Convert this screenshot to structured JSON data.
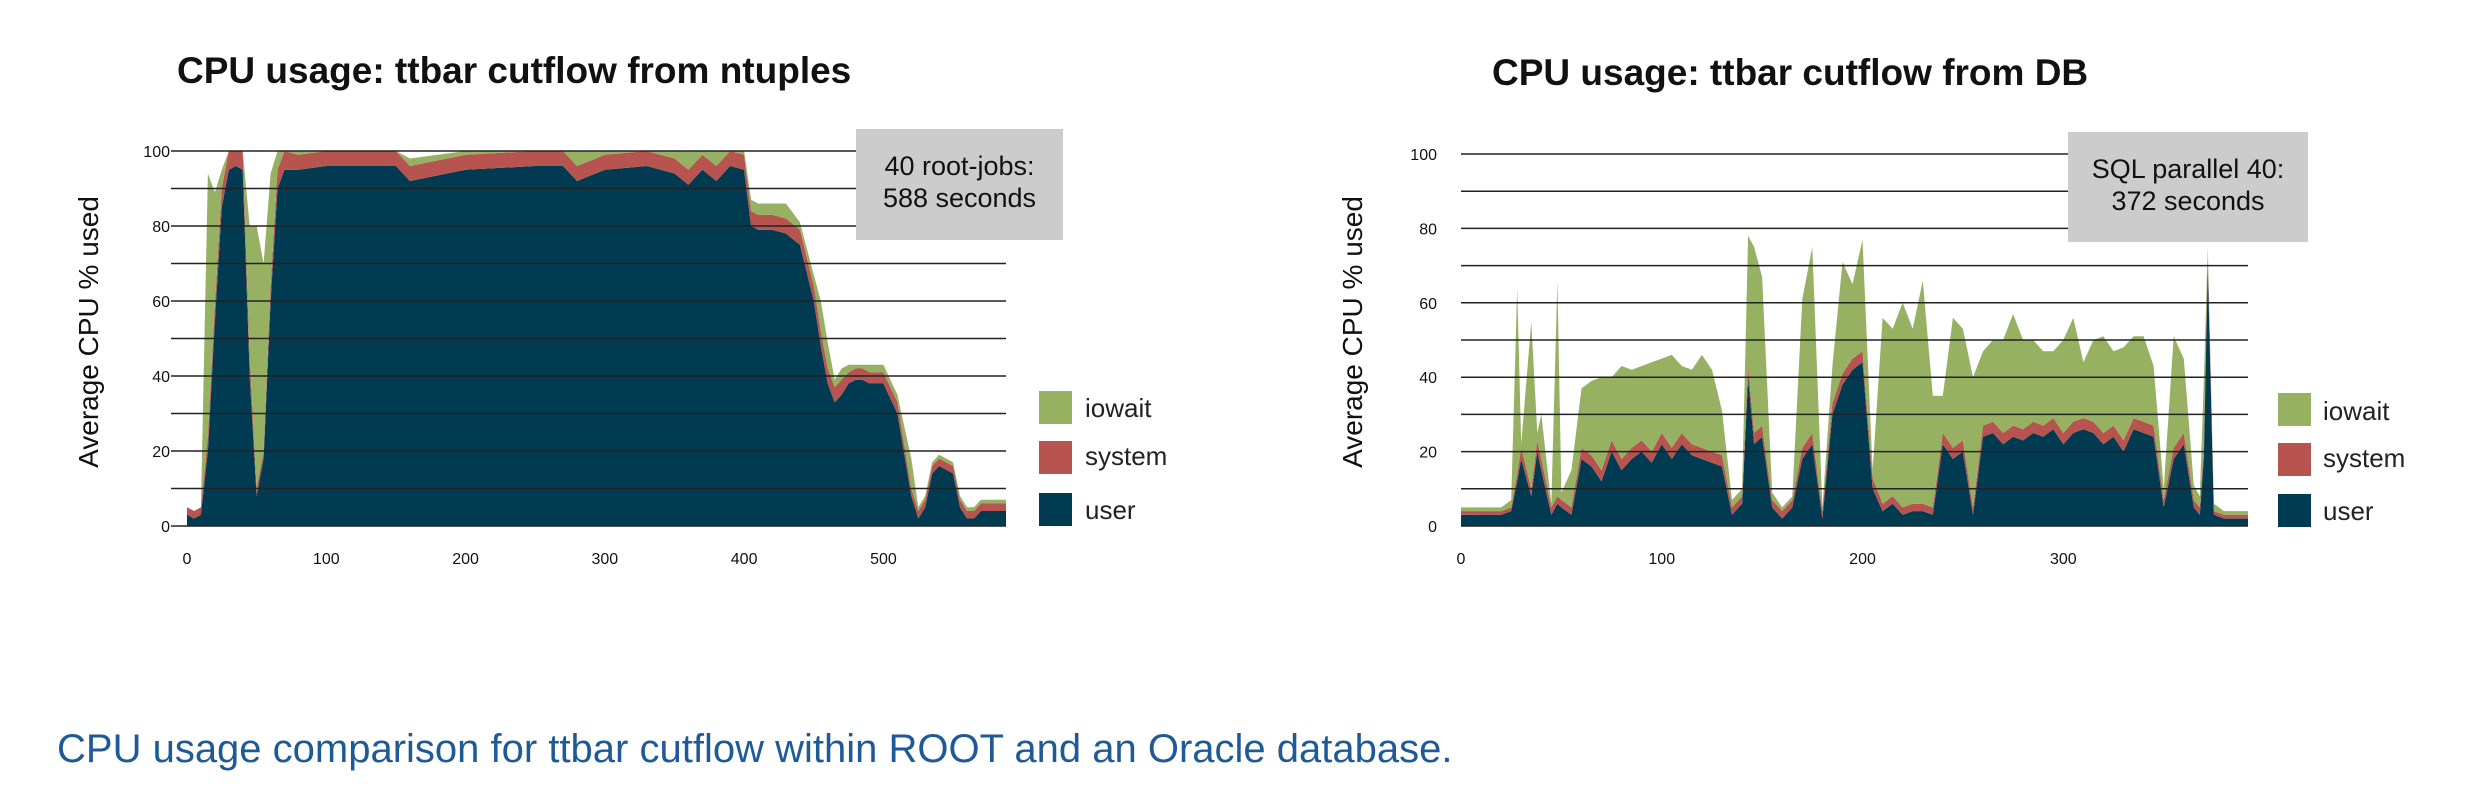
{
  "colors": {
    "iowait": "#97b163",
    "system": "#b85450",
    "user": "#013b52",
    "grid": "#222222",
    "annotation_bg": "#cccccc"
  },
  "caption": "CPU usage comparison for ttbar cutflow within ROOT and an Oracle database.",
  "chart_data": [
    {
      "type": "area",
      "stacked": true,
      "title": "CPU usage: ttbar cutflow from ntuples",
      "ylabel": "Average CPU % used",
      "xlabel": "",
      "xlim": [
        0,
        588
      ],
      "ylim": [
        0,
        100
      ],
      "x_ticks": [
        "0",
        "100",
        "200",
        "300",
        "400",
        "500"
      ],
      "y_ticks": [
        "0",
        "20",
        "40",
        "60",
        "80",
        "100"
      ],
      "grid": "horizontal",
      "legend": [
        "iowait",
        "system",
        "user"
      ],
      "legend_position": "right",
      "annotation": [
        "40 root-jobs:",
        "588 seconds"
      ],
      "x": [
        0,
        5,
        10,
        15,
        20,
        25,
        30,
        35,
        40,
        45,
        50,
        55,
        60,
        65,
        70,
        80,
        100,
        150,
        160,
        200,
        250,
        270,
        280,
        300,
        330,
        350,
        360,
        370,
        380,
        390,
        400,
        405,
        410,
        420,
        430,
        440,
        450,
        455,
        460,
        465,
        470,
        475,
        480,
        485,
        490,
        500,
        510,
        520,
        525,
        530,
        535,
        540,
        545,
        550,
        555,
        560,
        565,
        570,
        575,
        580,
        585,
        588
      ],
      "series": [
        {
          "name": "user",
          "values": [
            3,
            2,
            3,
            20,
            55,
            85,
            95,
            96,
            95,
            40,
            8,
            18,
            60,
            90,
            95,
            95,
            96,
            96,
            92,
            95,
            96,
            96,
            92,
            95,
            96,
            94,
            91,
            95,
            92,
            96,
            95,
            80,
            79,
            79,
            78,
            75,
            60,
            48,
            38,
            33,
            35,
            38,
            39,
            39,
            38,
            38,
            30,
            8,
            2,
            5,
            14,
            16,
            15,
            14,
            5,
            2,
            2,
            4,
            4,
            4,
            4,
            4
          ]
        },
        {
          "name": "system",
          "values": [
            2,
            2,
            2,
            4,
            4,
            5,
            5,
            4,
            5,
            5,
            2,
            2,
            4,
            5,
            5,
            4,
            4,
            4,
            4,
            4,
            4,
            4,
            4,
            4,
            4,
            4,
            4,
            4,
            4,
            4,
            4,
            4,
            4,
            4,
            4,
            4,
            4,
            4,
            4,
            4,
            4,
            3,
            3,
            3,
            3,
            3,
            3,
            2,
            2,
            2,
            2,
            2,
            2,
            2,
            2,
            2,
            2,
            2,
            2,
            2,
            2,
            2
          ]
        },
        {
          "name": "iowait",
          "values": [
            0,
            0,
            0,
            70,
            30,
            5,
            0,
            0,
            0,
            35,
            70,
            50,
            30,
            5,
            0,
            1,
            0,
            0,
            2,
            1,
            0,
            0,
            4,
            1,
            0,
            2,
            5,
            1,
            4,
            0,
            1,
            3,
            3,
            3,
            4,
            2,
            3,
            8,
            7,
            2,
            3,
            2,
            1,
            1,
            2,
            2,
            2,
            8,
            1,
            1,
            1,
            1,
            1,
            1,
            1,
            1,
            1,
            1,
            1,
            1,
            1,
            1
          ]
        }
      ]
    },
    {
      "type": "area",
      "stacked": true,
      "title": "CPU usage: ttbar cutflow from DB",
      "ylabel": "Average CPU % used",
      "xlabel": "",
      "xlim": [
        0,
        392
      ],
      "ylim": [
        0,
        100
      ],
      "x_ticks": [
        "0",
        "100",
        "200",
        "300"
      ],
      "y_ticks": [
        "0",
        "20",
        "40",
        "60",
        "80",
        "100"
      ],
      "grid": "horizontal",
      "legend": [
        "iowait",
        "system",
        "user"
      ],
      "legend_position": "right",
      "annotation": [
        "SQL parallel 40:",
        "372 seconds"
      ],
      "x": [
        0,
        10,
        20,
        25,
        28,
        30,
        35,
        38,
        40,
        45,
        48,
        50,
        55,
        60,
        65,
        70,
        75,
        80,
        85,
        90,
        95,
        100,
        105,
        110,
        115,
        120,
        125,
        130,
        135,
        140,
        143,
        146,
        150,
        155,
        160,
        165,
        170,
        175,
        180,
        185,
        190,
        195,
        200,
        205,
        210,
        215,
        220,
        225,
        230,
        235,
        240,
        245,
        250,
        255,
        260,
        265,
        270,
        275,
        280,
        285,
        290,
        295,
        300,
        305,
        310,
        315,
        320,
        325,
        330,
        335,
        340,
        345,
        350,
        355,
        360,
        365,
        368,
        370,
        372,
        375,
        380,
        385,
        392
      ],
      "series": [
        {
          "name": "user",
          "values": [
            3,
            3,
            3,
            4,
            12,
            18,
            8,
            20,
            15,
            3,
            6,
            5,
            3,
            18,
            16,
            12,
            20,
            15,
            18,
            20,
            17,
            22,
            18,
            22,
            19,
            18,
            17,
            16,
            3,
            6,
            40,
            22,
            24,
            5,
            2,
            5,
            18,
            22,
            2,
            30,
            38,
            42,
            44,
            10,
            4,
            6,
            3,
            4,
            4,
            3,
            22,
            18,
            20,
            3,
            24,
            25,
            22,
            24,
            23,
            25,
            24,
            26,
            22,
            25,
            26,
            25,
            22,
            24,
            20,
            26,
            25,
            24,
            5,
            18,
            22,
            5,
            3,
            18,
            70,
            3,
            2,
            2,
            2
          ]
        },
        {
          "name": "system",
          "values": [
            1,
            1,
            1,
            1,
            2,
            3,
            2,
            3,
            3,
            2,
            2,
            2,
            2,
            3,
            3,
            3,
            3,
            3,
            3,
            3,
            3,
            3,
            3,
            3,
            3,
            3,
            3,
            3,
            2,
            2,
            3,
            3,
            3,
            2,
            2,
            2,
            3,
            3,
            2,
            3,
            3,
            3,
            3,
            3,
            2,
            2,
            2,
            2,
            2,
            2,
            3,
            3,
            3,
            2,
            3,
            3,
            3,
            3,
            3,
            3,
            3,
            3,
            3,
            3,
            3,
            3,
            3,
            3,
            3,
            3,
            3,
            3,
            2,
            3,
            3,
            2,
            2,
            3,
            3,
            1,
            1,
            1,
            1
          ]
        },
        {
          "name": "iowait",
          "values": [
            1,
            1,
            1,
            2,
            50,
            1,
            45,
            2,
            12,
            1,
            58,
            2,
            10,
            16,
            20,
            25,
            17,
            25,
            21,
            20,
            24,
            20,
            25,
            18,
            20,
            25,
            22,
            12,
            2,
            2,
            35,
            50,
            40,
            2,
            1,
            1,
            40,
            50,
            1,
            10,
            30,
            20,
            30,
            2,
            50,
            45,
            55,
            47,
            60,
            30,
            10,
            35,
            30,
            35,
            20,
            22,
            25,
            30,
            24,
            22,
            20,
            18,
            25,
            28,
            15,
            22,
            26,
            20,
            25,
            22,
            23,
            16,
            3,
            30,
            20,
            4,
            3,
            18,
            2,
            2,
            1,
            1,
            1
          ]
        }
      ]
    }
  ]
}
